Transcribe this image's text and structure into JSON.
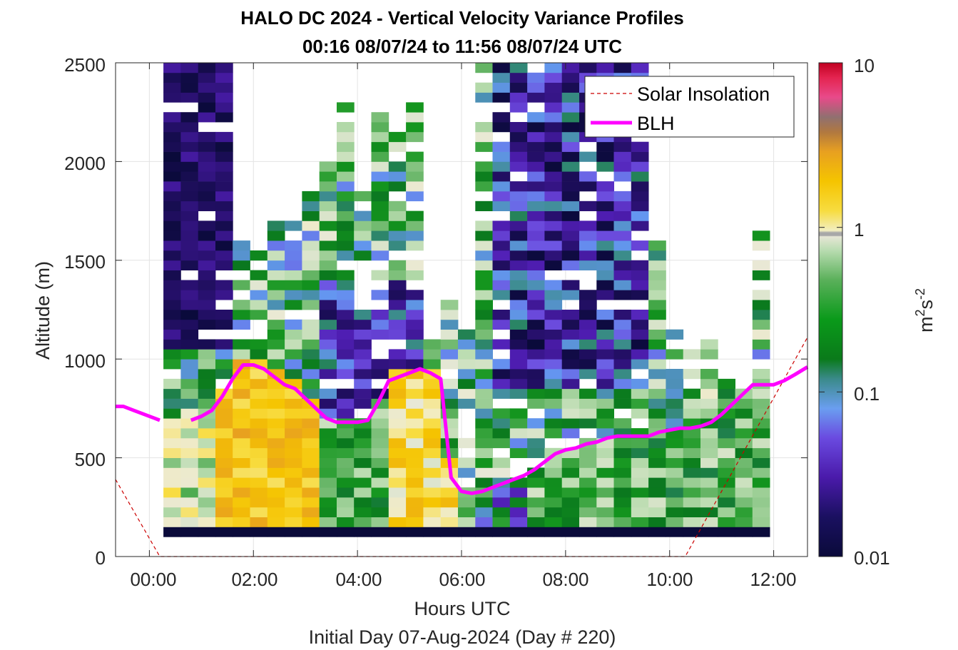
{
  "chart_data": {
    "type": "heatmap",
    "title_line1": "HALO DC 2024 - Vertical Velocity Variance Profiles",
    "title_line2": "00:16 08/07/24 to 11:56 08/07/24  UTC",
    "xlabel": "Hours UTC",
    "xlabel2": "Initial Day 07-Aug-2024 (Day # 220)",
    "ylabel": "Altitude (m)",
    "colorbar_label_base": "m",
    "colorbar_label_sup1": "2",
    "colorbar_label_mid": "s",
    "colorbar_label_sup2": "-2",
    "colorbar_scale": "log",
    "colorbar_range": [
      0.01,
      10
    ],
    "colorbar_ticks": [
      {
        "value": 10,
        "label": "10"
      },
      {
        "value": 1,
        "label": "1"
      },
      {
        "value": 0.1,
        "label": "0.1"
      },
      {
        "value": 0.01,
        "label": "0.01"
      }
    ],
    "xlim_hours": [
      -0.65,
      12.65
    ],
    "ylim": [
      0,
      2500
    ],
    "x_ticks": [
      {
        "value": 0,
        "label": "00:00"
      },
      {
        "value": 2,
        "label": "02:00"
      },
      {
        "value": 4,
        "label": "04:00"
      },
      {
        "value": 6,
        "label": "06:00"
      },
      {
        "value": 8,
        "label": "08:00"
      },
      {
        "value": 10,
        "label": "10:00"
      },
      {
        "value": 12,
        "label": "12:00"
      }
    ],
    "y_ticks": [
      {
        "value": 0,
        "label": "0"
      },
      {
        "value": 500,
        "label": "500"
      },
      {
        "value": 1000,
        "label": "1000"
      },
      {
        "value": 1500,
        "label": "1500"
      },
      {
        "value": 2000,
        "label": "2000"
      },
      {
        "value": 2500,
        "label": "2500"
      }
    ],
    "grid": true,
    "legend_position": "top-right",
    "legend": [
      {
        "name": "Solar Insolation",
        "color": "#cc0000",
        "style": "dashed"
      },
      {
        "name": "BLH",
        "color": "#ff00ff",
        "style": "solid"
      }
    ],
    "heatmap_time_range_hours": [
      0.27,
      11.93
    ],
    "heatmap_altitude_range_m": [
      100,
      2500
    ],
    "heatmap_profile_interval_hours": 0.333,
    "heatmap_range_gate_m": 50,
    "heatmap_regimes": [
      {
        "time_range": "00:16-01:00",
        "altitude_range_m": [
          100,
          700
        ],
        "variance": "~0.1-0.5"
      },
      {
        "time_range": "01:00-03:00",
        "altitude_range_m": [
          150,
          900
        ],
        "variance": "~0.5-1"
      },
      {
        "time_range": "00:16-01:00",
        "altitude_range_m": [
          1000,
          2500
        ],
        "variance": "~0.01-0.02"
      },
      {
        "time_range": "06:00-10:00",
        "altitude_range_m": [
          700,
          2500
        ],
        "variance": "~0.01-0.1"
      },
      {
        "time_range": "07:30-12:00",
        "altitude_range_m": [
          150,
          650
        ],
        "variance": "~0.05-0.2"
      }
    ],
    "blh": {
      "x": [
        -0.65,
        -0.5,
        -0.3,
        -0.1,
        0.1,
        0.2,
        0.6,
        0.8,
        1.0,
        1.2,
        1.4,
        1.6,
        1.8,
        2.0,
        2.2,
        2.4,
        2.6,
        2.8,
        3.0,
        3.2,
        3.4,
        3.6,
        3.8,
        4.0,
        4.2,
        4.4,
        4.6,
        4.8,
        5.0,
        5.2,
        5.4,
        5.6,
        5.8,
        6.0,
        6.2,
        6.4,
        6.6,
        6.8,
        7.0,
        7.2,
        7.4,
        7.6,
        7.8,
        8.0,
        8.2,
        8.4,
        8.6,
        8.8,
        9.0,
        9.2,
        9.4,
        9.6,
        9.8,
        10.0,
        10.2,
        10.4,
        10.6,
        10.8,
        11.0,
        11.2,
        11.4,
        11.6,
        11.8,
        12.0,
        12.2,
        12.4,
        12.65
      ],
      "y": [
        760,
        760,
        740,
        720,
        700,
        690,
        null,
        690,
        710,
        740,
        810,
        900,
        970,
        970,
        950,
        910,
        870,
        850,
        800,
        750,
        700,
        680,
        680,
        680,
        690,
        780,
        890,
        910,
        930,
        950,
        930,
        900,
        400,
        330,
        320,
        330,
        350,
        370,
        390,
        410,
        440,
        480,
        520,
        540,
        550,
        570,
        580,
        600,
        610,
        610,
        610,
        610,
        630,
        640,
        650,
        650,
        660,
        680,
        720,
        770,
        820,
        870,
        870,
        870,
        890,
        920,
        960
      ]
    },
    "solar_insolation": {
      "x": [
        -0.65,
        0.2,
        10.3,
        12.65
      ],
      "y": [
        390,
        0,
        0,
        1110
      ]
    }
  }
}
